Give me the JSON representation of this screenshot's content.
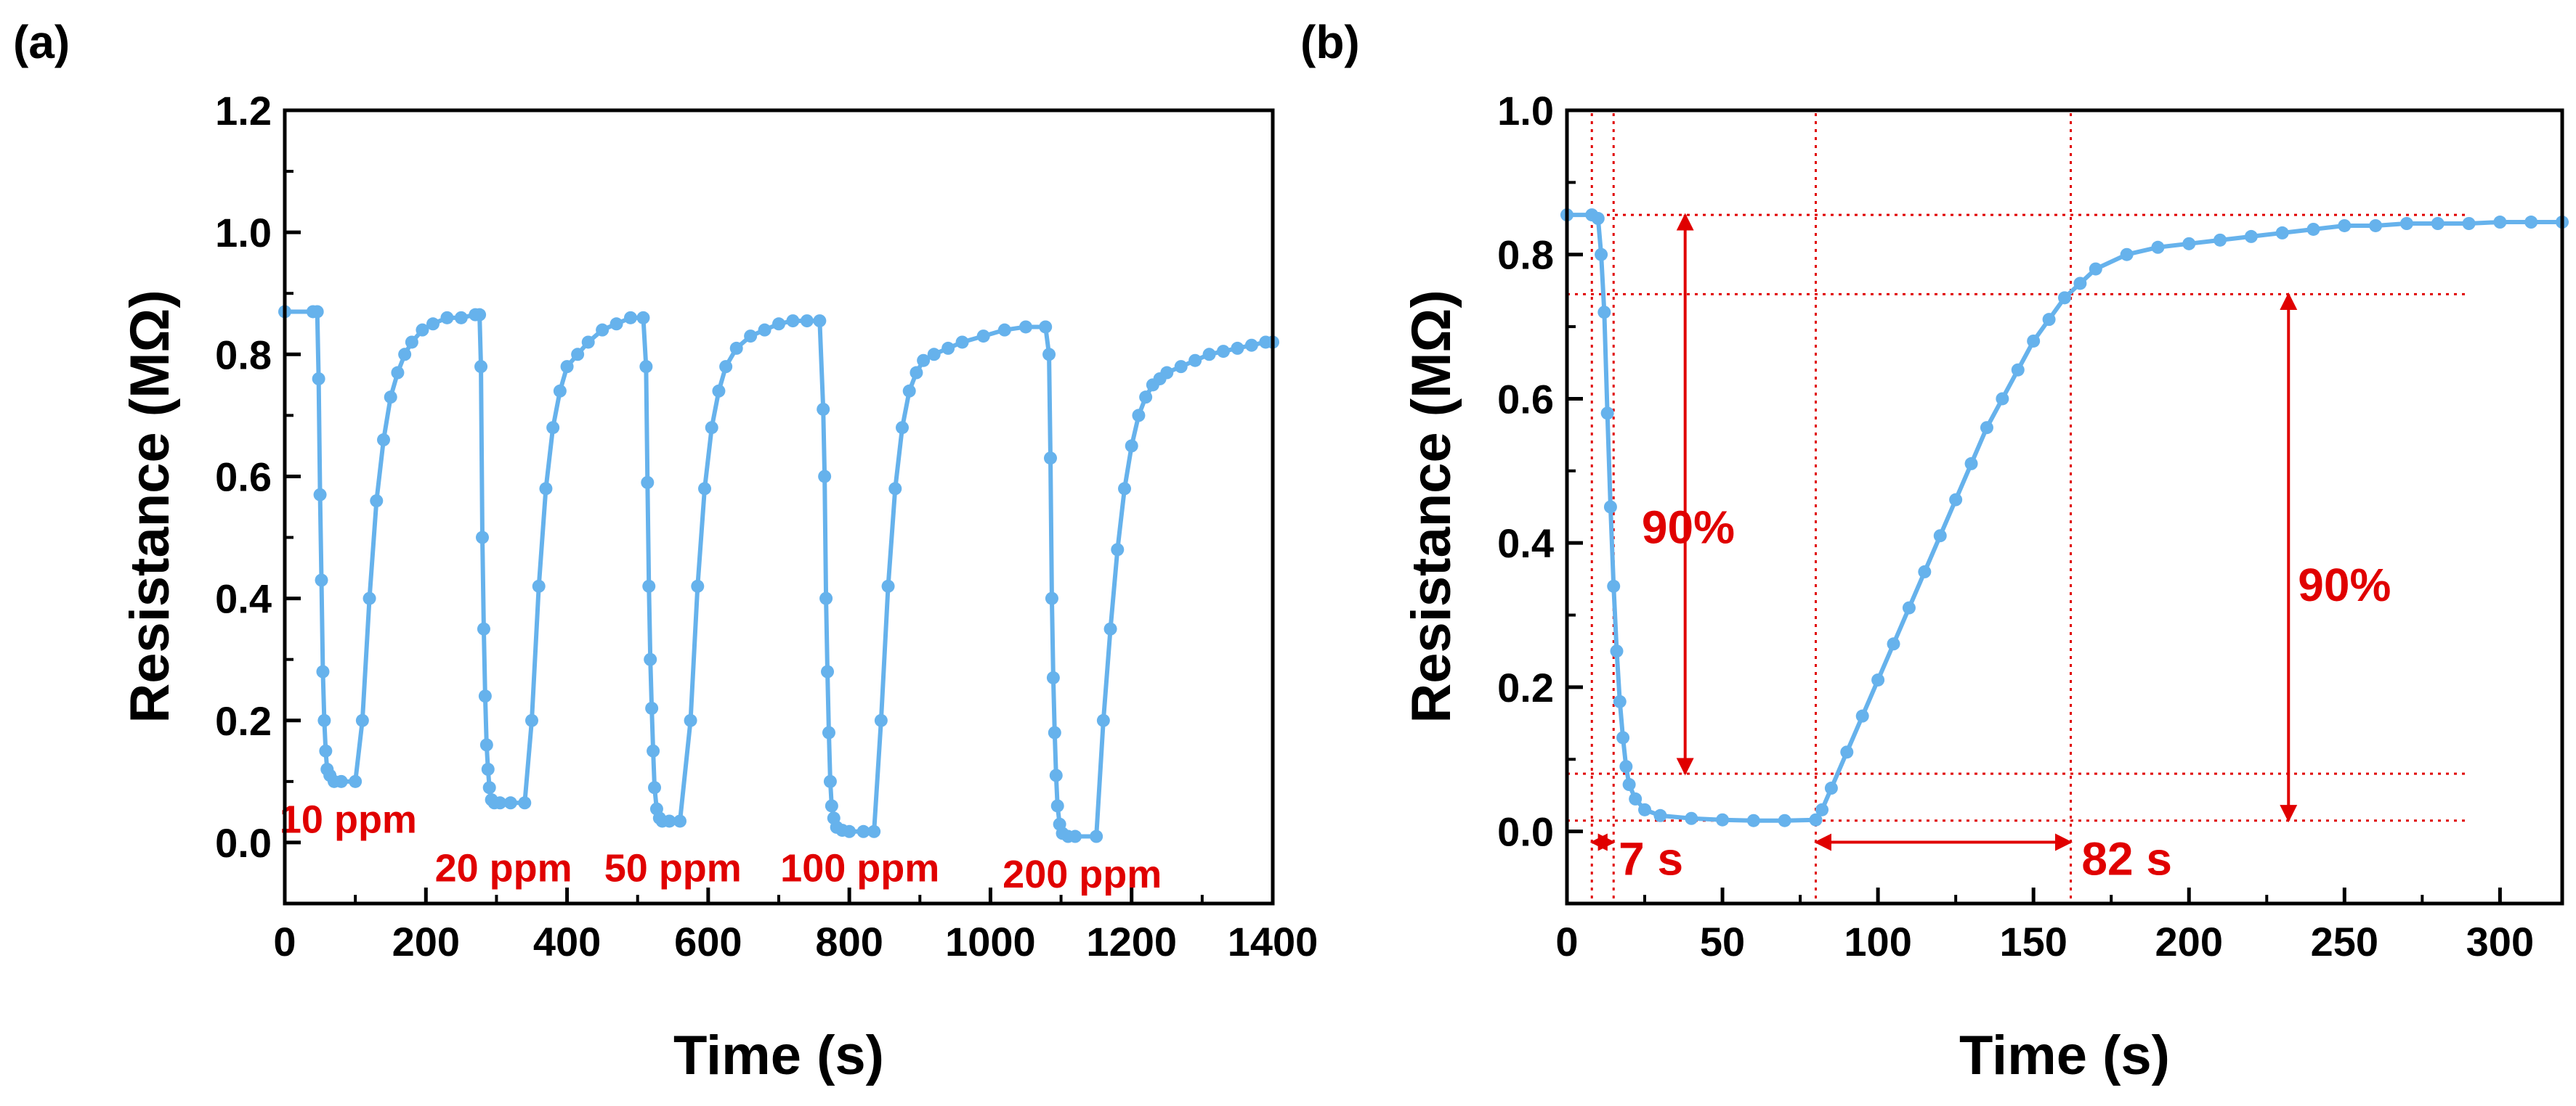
{
  "figure": {
    "colors": {
      "series": "#66b2ec",
      "annotation": "#e00000",
      "axis": "#000000"
    }
  },
  "chart_data": [
    {
      "panel_label": "(a)",
      "type": "scatter",
      "title": "",
      "xlabel": "Time (s)",
      "ylabel": "Resistance (MΩ)",
      "xlim": [
        0,
        1400
      ],
      "ylim": [
        -0.1,
        1.2
      ],
      "xticks": [
        0,
        200,
        400,
        600,
        800,
        1000,
        1200,
        1400
      ],
      "xtick_labels": [
        "0",
        "200",
        "400",
        "600",
        "800",
        "1000",
        "1200",
        "1400"
      ],
      "yticks": [
        0.0,
        0.2,
        0.4,
        0.6,
        0.8,
        1.0,
        1.2
      ],
      "ytick_labels": [
        "0.0",
        "0.2",
        "0.4",
        "0.6",
        "0.8",
        "1.0",
        "1.2"
      ],
      "grid": false,
      "series": [
        {
          "name": "Resistance",
          "style": "line-with-markers",
          "x": [
            0,
            40,
            46,
            48,
            50,
            52,
            54,
            56,
            58,
            60,
            64,
            70,
            80,
            100,
            110,
            120,
            130,
            140,
            150,
            160,
            170,
            180,
            195,
            210,
            230,
            250,
            270,
            276,
            278,
            280,
            282,
            284,
            286,
            288,
            290,
            293,
            297,
            305,
            320,
            340,
            350,
            360,
            370,
            380,
            390,
            400,
            415,
            430,
            450,
            470,
            490,
            508,
            512,
            514,
            516,
            518,
            520,
            522,
            524,
            527,
            531,
            535,
            545,
            560,
            575,
            585,
            595,
            605,
            615,
            625,
            640,
            660,
            680,
            700,
            720,
            740,
            758,
            763,
            765,
            767,
            769,
            771,
            773,
            775,
            778,
            782,
            790,
            800,
            820,
            835,
            845,
            855,
            865,
            875,
            885,
            895,
            905,
            920,
            940,
            960,
            990,
            1020,
            1050,
            1078,
            1083,
            1085,
            1087,
            1089,
            1091,
            1093,
            1095,
            1098,
            1102,
            1110,
            1120,
            1150,
            1160,
            1170,
            1180,
            1190,
            1200,
            1210,
            1220,
            1230,
            1240,
            1250,
            1270,
            1290,
            1310,
            1330,
            1350,
            1370,
            1390,
            1400
          ],
          "y": [
            0.87,
            0.87,
            0.87,
            0.76,
            0.57,
            0.43,
            0.28,
            0.2,
            0.15,
            0.12,
            0.11,
            0.1,
            0.1,
            0.1,
            0.2,
            0.4,
            0.56,
            0.66,
            0.73,
            0.77,
            0.8,
            0.82,
            0.84,
            0.85,
            0.86,
            0.86,
            0.865,
            0.865,
            0.78,
            0.5,
            0.35,
            0.24,
            0.16,
            0.12,
            0.09,
            0.07,
            0.065,
            0.065,
            0.065,
            0.065,
            0.2,
            0.42,
            0.58,
            0.68,
            0.74,
            0.78,
            0.8,
            0.82,
            0.84,
            0.85,
            0.86,
            0.86,
            0.78,
            0.59,
            0.42,
            0.3,
            0.22,
            0.15,
            0.09,
            0.055,
            0.04,
            0.035,
            0.035,
            0.035,
            0.2,
            0.42,
            0.58,
            0.68,
            0.74,
            0.78,
            0.81,
            0.83,
            0.84,
            0.85,
            0.855,
            0.855,
            0.855,
            0.71,
            0.6,
            0.4,
            0.28,
            0.18,
            0.1,
            0.06,
            0.04,
            0.025,
            0.02,
            0.018,
            0.018,
            0.018,
            0.2,
            0.42,
            0.58,
            0.68,
            0.74,
            0.77,
            0.79,
            0.8,
            0.81,
            0.82,
            0.83,
            0.84,
            0.845,
            0.845,
            0.8,
            0.63,
            0.4,
            0.27,
            0.18,
            0.11,
            0.06,
            0.03,
            0.015,
            0.01,
            0.01,
            0.01,
            0.2,
            0.35,
            0.48,
            0.58,
            0.65,
            0.7,
            0.73,
            0.75,
            0.76,
            0.77,
            0.78,
            0.79,
            0.8,
            0.805,
            0.81,
            0.815,
            0.82,
            0.82
          ]
        }
      ],
      "annotations": [
        {
          "text": "10 ppm",
          "x": 90,
          "y": 0.04
        },
        {
          "text": "20 ppm",
          "x": 310,
          "y": -0.04
        },
        {
          "text": "50 ppm",
          "x": 550,
          "y": -0.04
        },
        {
          "text": "100 ppm",
          "x": 815,
          "y": -0.04
        },
        {
          "text": "200 ppm",
          "x": 1130,
          "y": -0.05
        }
      ]
    },
    {
      "panel_label": "(b)",
      "type": "scatter",
      "title": "",
      "xlabel": "Time (s)",
      "ylabel": "Resistance (MΩ)",
      "xlim": [
        0,
        320
      ],
      "ylim": [
        -0.1,
        1.0
      ],
      "xticks": [
        0,
        50,
        100,
        150,
        200,
        250,
        300
      ],
      "xtick_labels": [
        "0",
        "50",
        "100",
        "150",
        "200",
        "250",
        "300"
      ],
      "yticks": [
        0.0,
        0.2,
        0.4,
        0.6,
        0.8,
        1.0
      ],
      "ytick_labels": [
        "0.0",
        "0.2",
        "0.4",
        "0.6",
        "0.8",
        "1.0"
      ],
      "grid": false,
      "series": [
        {
          "name": "Resistance",
          "style": "line-with-markers",
          "x": [
            0,
            8,
            10,
            11,
            12,
            13,
            14,
            15,
            16,
            17,
            18,
            19,
            20,
            22,
            25,
            30,
            40,
            50,
            60,
            70,
            80,
            82,
            85,
            90,
            95,
            100,
            105,
            110,
            115,
            120,
            125,
            130,
            135,
            140,
            145,
            150,
            155,
            160,
            165,
            170,
            180,
            190,
            200,
            210,
            220,
            230,
            240,
            250,
            260,
            270,
            280,
            290,
            300,
            310,
            320
          ],
          "y": [
            0.855,
            0.855,
            0.85,
            0.8,
            0.72,
            0.58,
            0.45,
            0.34,
            0.25,
            0.18,
            0.13,
            0.09,
            0.065,
            0.045,
            0.03,
            0.022,
            0.018,
            0.016,
            0.015,
            0.015,
            0.016,
            0.03,
            0.06,
            0.11,
            0.16,
            0.21,
            0.26,
            0.31,
            0.36,
            0.41,
            0.46,
            0.51,
            0.56,
            0.6,
            0.64,
            0.68,
            0.71,
            0.74,
            0.76,
            0.78,
            0.8,
            0.81,
            0.815,
            0.82,
            0.825,
            0.83,
            0.835,
            0.84,
            0.84,
            0.843,
            0.843,
            0.843,
            0.845,
            0.845,
            0.845
          ]
        }
      ],
      "annotations": [
        {
          "text": "90%",
          "x": 39,
          "y": 0.42
        },
        {
          "text": "90%",
          "x": 250,
          "y": 0.34
        },
        {
          "text": "7 s",
          "x": 27,
          "y": -0.04
        },
        {
          "text": "82 s",
          "x": 180,
          "y": -0.04
        }
      ],
      "reference_lines": {
        "vertical_x": [
          8,
          15,
          80,
          162
        ],
        "horizontal": [
          {
            "y": 0.855,
            "x_from": 0,
            "x_to": 290
          },
          {
            "y": 0.745,
            "x_from": 0,
            "x_to": 290
          },
          {
            "y": 0.08,
            "x_from": 0,
            "x_to": 290
          },
          {
            "y": 0.015,
            "x_from": 0,
            "x_to": 290
          }
        ]
      },
      "arrows": [
        {
          "type": "double",
          "x": 38,
          "y_from": 0.855,
          "y_to": 0.08
        },
        {
          "type": "double",
          "x": 232,
          "y_from": 0.745,
          "y_to": 0.015
        },
        {
          "type": "double",
          "y": -0.015,
          "x_from": 80,
          "x_to": 162
        },
        {
          "type": "double",
          "y": -0.015,
          "x_from": 8,
          "x_to": 15
        }
      ]
    }
  ]
}
